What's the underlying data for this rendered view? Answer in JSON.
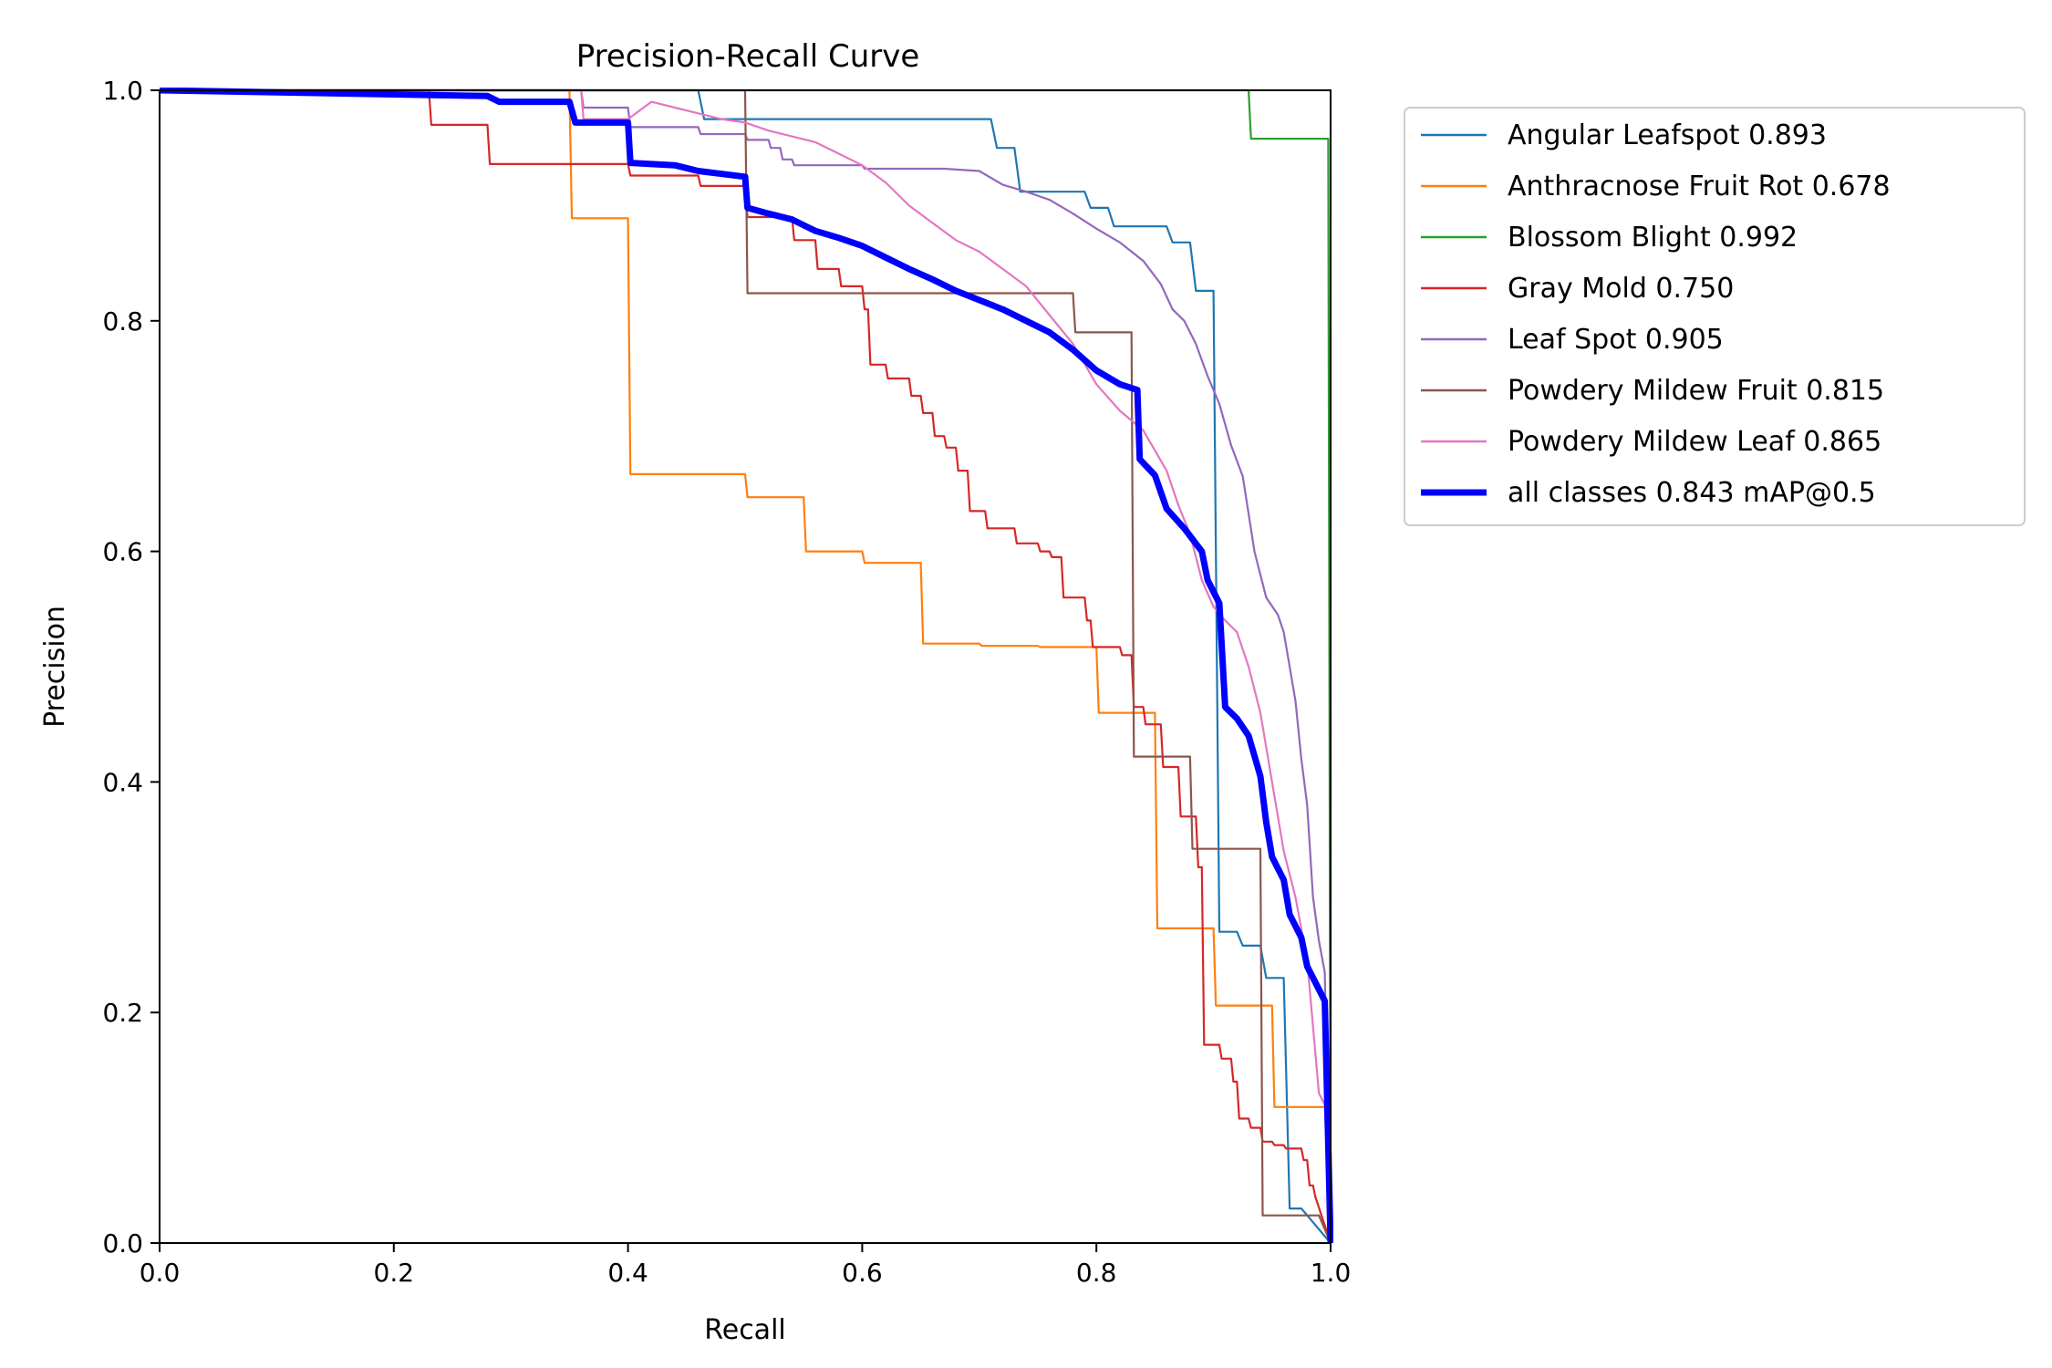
{
  "chart_data": {
    "type": "line",
    "title": "Precision-Recall Curve",
    "xlabel": "Recall",
    "ylabel": "Precision",
    "xlim": [
      0,
      1
    ],
    "ylim": [
      0,
      1
    ],
    "xticks": [
      "0.0",
      "0.2",
      "0.4",
      "0.6",
      "0.8",
      "1.0"
    ],
    "yticks": [
      "0.0",
      "0.2",
      "0.4",
      "0.6",
      "0.8",
      "1.0"
    ],
    "grid": false,
    "legend_position": "outside-top-right",
    "series": [
      {
        "name": "Angular Leafspot 0.893",
        "color": "#1f77b4",
        "points": [
          [
            0,
            1
          ],
          [
            0.46,
            1
          ],
          [
            0.465,
            0.975
          ],
          [
            0.71,
            0.975
          ],
          [
            0.715,
            0.95
          ],
          [
            0.73,
            0.95
          ],
          [
            0.735,
            0.912
          ],
          [
            0.79,
            0.912
          ],
          [
            0.795,
            0.898
          ],
          [
            0.81,
            0.898
          ],
          [
            0.815,
            0.882
          ],
          [
            0.86,
            0.882
          ],
          [
            0.865,
            0.868
          ],
          [
            0.88,
            0.868
          ],
          [
            0.885,
            0.826
          ],
          [
            0.9,
            0.826
          ],
          [
            0.905,
            0.27
          ],
          [
            0.92,
            0.27
          ],
          [
            0.925,
            0.258
          ],
          [
            0.94,
            0.258
          ],
          [
            0.945,
            0.23
          ],
          [
            0.96,
            0.23
          ],
          [
            0.965,
            0.03
          ],
          [
            0.975,
            0.03
          ],
          [
            1.0,
            0.0
          ]
        ]
      },
      {
        "name": "Anthracnose Fruit Rot 0.678",
        "color": "#ff7f0e",
        "points": [
          [
            0,
            1
          ],
          [
            0.35,
            1
          ],
          [
            0.352,
            0.889
          ],
          [
            0.4,
            0.889
          ],
          [
            0.402,
            0.667
          ],
          [
            0.5,
            0.667
          ],
          [
            0.502,
            0.647
          ],
          [
            0.55,
            0.647
          ],
          [
            0.552,
            0.6
          ],
          [
            0.6,
            0.6
          ],
          [
            0.602,
            0.59
          ],
          [
            0.65,
            0.59
          ],
          [
            0.652,
            0.52
          ],
          [
            0.7,
            0.52
          ],
          [
            0.702,
            0.518
          ],
          [
            0.75,
            0.518
          ],
          [
            0.752,
            0.517
          ],
          [
            0.8,
            0.517
          ],
          [
            0.802,
            0.46
          ],
          [
            0.85,
            0.46
          ],
          [
            0.852,
            0.273
          ],
          [
            0.9,
            0.273
          ],
          [
            0.902,
            0.206
          ],
          [
            0.95,
            0.206
          ],
          [
            0.952,
            0.118
          ],
          [
            1.0,
            0.118
          ],
          [
            1.0,
            0.0
          ]
        ]
      },
      {
        "name": "Blossom Blight 0.992",
        "color": "#2ca02c",
        "points": [
          [
            0,
            1
          ],
          [
            0.93,
            1
          ],
          [
            0.932,
            0.958
          ],
          [
            0.998,
            0.958
          ],
          [
            1.0,
            0.0
          ]
        ]
      },
      {
        "name": "Gray Mold 0.750",
        "color": "#d62728",
        "points": [
          [
            0,
            1
          ],
          [
            0.23,
            1
          ],
          [
            0.232,
            0.97
          ],
          [
            0.28,
            0.97
          ],
          [
            0.282,
            0.936
          ],
          [
            0.4,
            0.936
          ],
          [
            0.402,
            0.926
          ],
          [
            0.46,
            0.926
          ],
          [
            0.462,
            0.917
          ],
          [
            0.5,
            0.917
          ],
          [
            0.502,
            0.89
          ],
          [
            0.54,
            0.89
          ],
          [
            0.542,
            0.87
          ],
          [
            0.56,
            0.87
          ],
          [
            0.562,
            0.845
          ],
          [
            0.58,
            0.845
          ],
          [
            0.582,
            0.83
          ],
          [
            0.6,
            0.83
          ],
          [
            0.602,
            0.81
          ],
          [
            0.605,
            0.81
          ],
          [
            0.607,
            0.762
          ],
          [
            0.62,
            0.762
          ],
          [
            0.622,
            0.75
          ],
          [
            0.64,
            0.75
          ],
          [
            0.642,
            0.735
          ],
          [
            0.65,
            0.735
          ],
          [
            0.652,
            0.72
          ],
          [
            0.66,
            0.72
          ],
          [
            0.662,
            0.7
          ],
          [
            0.67,
            0.7
          ],
          [
            0.672,
            0.69
          ],
          [
            0.68,
            0.69
          ],
          [
            0.682,
            0.67
          ],
          [
            0.69,
            0.67
          ],
          [
            0.692,
            0.635
          ],
          [
            0.705,
            0.635
          ],
          [
            0.707,
            0.62
          ],
          [
            0.73,
            0.62
          ],
          [
            0.732,
            0.607
          ],
          [
            0.75,
            0.607
          ],
          [
            0.752,
            0.6
          ],
          [
            0.76,
            0.6
          ],
          [
            0.762,
            0.595
          ],
          [
            0.77,
            0.595
          ],
          [
            0.772,
            0.56
          ],
          [
            0.79,
            0.56
          ],
          [
            0.792,
            0.54
          ],
          [
            0.795,
            0.54
          ],
          [
            0.797,
            0.517
          ],
          [
            0.82,
            0.517
          ],
          [
            0.822,
            0.51
          ],
          [
            0.83,
            0.51
          ],
          [
            0.832,
            0.465
          ],
          [
            0.84,
            0.465
          ],
          [
            0.842,
            0.45
          ],
          [
            0.855,
            0.45
          ],
          [
            0.857,
            0.413
          ],
          [
            0.87,
            0.413
          ],
          [
            0.872,
            0.37
          ],
          [
            0.885,
            0.37
          ],
          [
            0.887,
            0.326
          ],
          [
            0.89,
            0.326
          ],
          [
            0.892,
            0.172
          ],
          [
            0.905,
            0.172
          ],
          [
            0.907,
            0.16
          ],
          [
            0.915,
            0.16
          ],
          [
            0.917,
            0.14
          ],
          [
            0.92,
            0.14
          ],
          [
            0.922,
            0.108
          ],
          [
            0.93,
            0.108
          ],
          [
            0.932,
            0.1
          ],
          [
            0.94,
            0.1
          ],
          [
            0.942,
            0.088
          ],
          [
            0.95,
            0.088
          ],
          [
            0.952,
            0.085
          ],
          [
            0.96,
            0.085
          ],
          [
            0.962,
            0.082
          ],
          [
            0.975,
            0.082
          ],
          [
            0.977,
            0.072
          ],
          [
            0.98,
            0.072
          ],
          [
            0.982,
            0.05
          ],
          [
            0.985,
            0.05
          ],
          [
            0.987,
            0.04
          ],
          [
            1.0,
            0.0
          ]
        ]
      },
      {
        "name": "Leaf Spot 0.905",
        "color": "#9467bd",
        "points": [
          [
            0,
            1
          ],
          [
            0.36,
            1
          ],
          [
            0.362,
            0.985
          ],
          [
            0.4,
            0.985
          ],
          [
            0.402,
            0.968
          ],
          [
            0.46,
            0.968
          ],
          [
            0.462,
            0.962
          ],
          [
            0.5,
            0.962
          ],
          [
            0.502,
            0.957
          ],
          [
            0.52,
            0.957
          ],
          [
            0.522,
            0.95
          ],
          [
            0.53,
            0.95
          ],
          [
            0.532,
            0.94
          ],
          [
            0.54,
            0.94
          ],
          [
            0.542,
            0.935
          ],
          [
            0.6,
            0.935
          ],
          [
            0.602,
            0.932
          ],
          [
            0.64,
            0.932
          ],
          [
            0.67,
            0.932
          ],
          [
            0.7,
            0.93
          ],
          [
            0.72,
            0.918
          ],
          [
            0.74,
            0.912
          ],
          [
            0.76,
            0.905
          ],
          [
            0.78,
            0.893
          ],
          [
            0.8,
            0.88
          ],
          [
            0.82,
            0.868
          ],
          [
            0.84,
            0.852
          ],
          [
            0.855,
            0.832
          ],
          [
            0.865,
            0.81
          ],
          [
            0.875,
            0.8
          ],
          [
            0.885,
            0.78
          ],
          [
            0.895,
            0.752
          ],
          [
            0.905,
            0.728
          ],
          [
            0.915,
            0.692
          ],
          [
            0.925,
            0.665
          ],
          [
            0.935,
            0.6
          ],
          [
            0.945,
            0.56
          ],
          [
            0.955,
            0.545
          ],
          [
            0.96,
            0.53
          ],
          [
            0.965,
            0.5
          ],
          [
            0.97,
            0.47
          ],
          [
            0.975,
            0.42
          ],
          [
            0.98,
            0.38
          ],
          [
            0.985,
            0.3
          ],
          [
            0.99,
            0.262
          ],
          [
            0.995,
            0.235
          ],
          [
            1.0,
            0.0
          ]
        ]
      },
      {
        "name": "Powdery Mildew Fruit 0.815",
        "color": "#8c564b",
        "points": [
          [
            0,
            1
          ],
          [
            0.498,
            1
          ],
          [
            0.5,
            1
          ],
          [
            0.502,
            0.824
          ],
          [
            0.78,
            0.824
          ],
          [
            0.782,
            0.79
          ],
          [
            0.83,
            0.79
          ],
          [
            0.832,
            0.422
          ],
          [
            0.88,
            0.422
          ],
          [
            0.882,
            0.342
          ],
          [
            0.94,
            0.342
          ],
          [
            0.942,
            0.024
          ],
          [
            0.99,
            0.024
          ],
          [
            1.0,
            0.0
          ]
        ]
      },
      {
        "name": "Powdery Mildew Leaf 0.865",
        "color": "#e377c2",
        "points": [
          [
            0,
            1
          ],
          [
            0.36,
            1
          ],
          [
            0.362,
            0.975
          ],
          [
            0.4,
            0.975
          ],
          [
            0.42,
            0.99
          ],
          [
            0.44,
            0.985
          ],
          [
            0.46,
            0.98
          ],
          [
            0.48,
            0.975
          ],
          [
            0.5,
            0.972
          ],
          [
            0.52,
            0.965
          ],
          [
            0.54,
            0.96
          ],
          [
            0.56,
            0.955
          ],
          [
            0.58,
            0.945
          ],
          [
            0.6,
            0.935
          ],
          [
            0.62,
            0.92
          ],
          [
            0.64,
            0.9
          ],
          [
            0.66,
            0.885
          ],
          [
            0.68,
            0.87
          ],
          [
            0.7,
            0.86
          ],
          [
            0.72,
            0.845
          ],
          [
            0.74,
            0.83
          ],
          [
            0.76,
            0.805
          ],
          [
            0.78,
            0.78
          ],
          [
            0.8,
            0.745
          ],
          [
            0.82,
            0.722
          ],
          [
            0.84,
            0.705
          ],
          [
            0.86,
            0.67
          ],
          [
            0.87,
            0.64
          ],
          [
            0.88,
            0.615
          ],
          [
            0.89,
            0.575
          ],
          [
            0.9,
            0.552
          ],
          [
            0.91,
            0.54
          ],
          [
            0.92,
            0.53
          ],
          [
            0.93,
            0.5
          ],
          [
            0.94,
            0.46
          ],
          [
            0.95,
            0.4
          ],
          [
            0.96,
            0.34
          ],
          [
            0.97,
            0.3
          ],
          [
            0.98,
            0.245
          ],
          [
            0.99,
            0.13
          ],
          [
            0.995,
            0.12
          ],
          [
            1.0,
            0.0
          ]
        ]
      },
      {
        "name": "all classes 0.843 mAP@0.5",
        "color": "#0000ff",
        "bold": true,
        "points": [
          [
            0,
            1
          ],
          [
            0.28,
            0.995
          ],
          [
            0.29,
            0.99
          ],
          [
            0.35,
            0.99
          ],
          [
            0.355,
            0.972
          ],
          [
            0.4,
            0.972
          ],
          [
            0.402,
            0.937
          ],
          [
            0.44,
            0.935
          ],
          [
            0.46,
            0.93
          ],
          [
            0.5,
            0.925
          ],
          [
            0.502,
            0.898
          ],
          [
            0.52,
            0.893
          ],
          [
            0.54,
            0.888
          ],
          [
            0.56,
            0.878
          ],
          [
            0.58,
            0.872
          ],
          [
            0.6,
            0.865
          ],
          [
            0.62,
            0.855
          ],
          [
            0.64,
            0.845
          ],
          [
            0.66,
            0.836
          ],
          [
            0.68,
            0.826
          ],
          [
            0.7,
            0.818
          ],
          [
            0.72,
            0.81
          ],
          [
            0.74,
            0.8
          ],
          [
            0.76,
            0.79
          ],
          [
            0.78,
            0.775
          ],
          [
            0.8,
            0.757
          ],
          [
            0.82,
            0.745
          ],
          [
            0.835,
            0.74
          ],
          [
            0.837,
            0.68
          ],
          [
            0.85,
            0.666
          ],
          [
            0.86,
            0.637
          ],
          [
            0.875,
            0.62
          ],
          [
            0.89,
            0.6
          ],
          [
            0.895,
            0.575
          ],
          [
            0.905,
            0.555
          ],
          [
            0.91,
            0.465
          ],
          [
            0.92,
            0.455
          ],
          [
            0.93,
            0.44
          ],
          [
            0.94,
            0.405
          ],
          [
            0.945,
            0.365
          ],
          [
            0.95,
            0.335
          ],
          [
            0.96,
            0.315
          ],
          [
            0.965,
            0.285
          ],
          [
            0.975,
            0.265
          ],
          [
            0.98,
            0.24
          ],
          [
            0.99,
            0.22
          ],
          [
            0.995,
            0.21
          ],
          [
            1.0,
            0.0
          ]
        ]
      }
    ]
  }
}
